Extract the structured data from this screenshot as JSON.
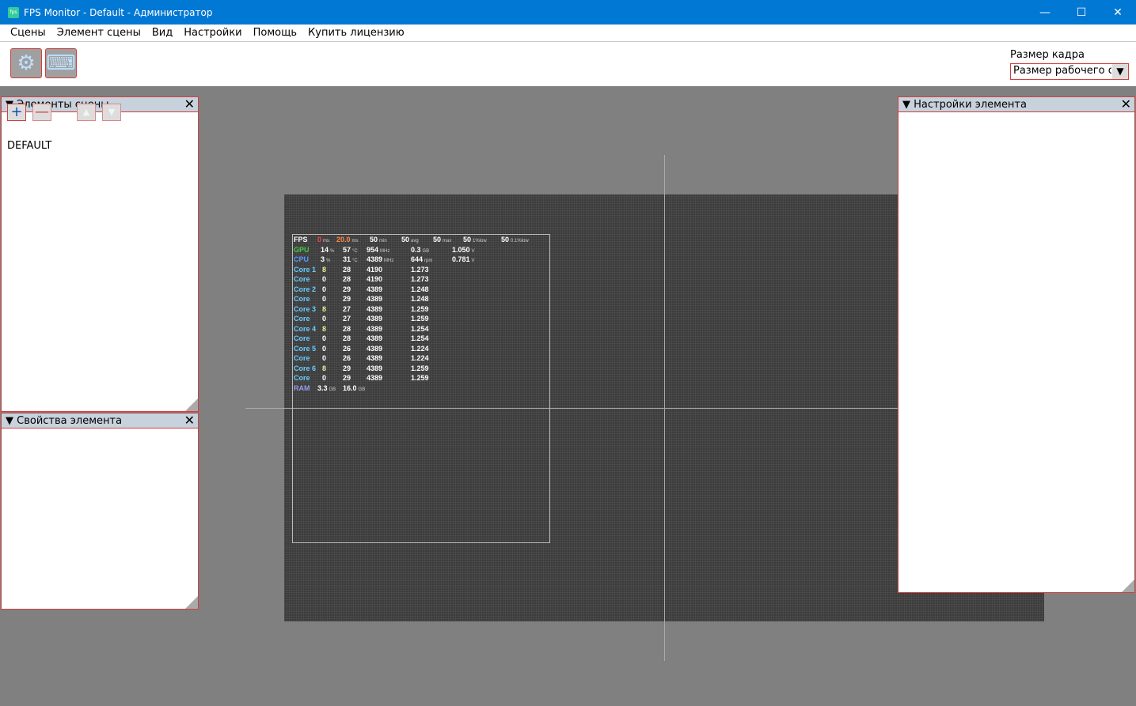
{
  "window": {
    "title": "FPS Monitor - Default - Администратор",
    "app_icon": "fps",
    "controls": [
      "minimize",
      "maximize",
      "close"
    ]
  },
  "menu": [
    "Сцены",
    "Элемент сцены",
    "Вид",
    "Настройки",
    "Помощь",
    "Купить лицензию"
  ],
  "toolbar": {
    "buttons": [
      "gear-icon",
      "keyboard-icon"
    ],
    "frame_size_label": "Размер кадра",
    "frame_size_value": "Размер рабочего стола"
  },
  "scene_panel": {
    "title": "Элементы сцены",
    "items": [
      "DEFAULT"
    ]
  },
  "props_panel": {
    "title": "Свойства элемента"
  },
  "settings_panel": {
    "title": "Настройки элемента"
  },
  "colors": {
    "accent": "#0078d4",
    "border": "#d04040",
    "fps": "#ffffff",
    "gpu": "#44cc44",
    "cpu": "#5599ff",
    "core": "#66ccff",
    "ram": "#9999ee",
    "warn": "#ff4444"
  },
  "overlay": {
    "fps": {
      "label": "FPS",
      "values": [
        [
          "0",
          "ms"
        ],
        [
          "20.0",
          "ms"
        ],
        [
          "50",
          "min"
        ],
        [
          "50",
          "avg"
        ],
        [
          "50",
          "max"
        ],
        [
          "50",
          "1%low"
        ],
        [
          "50",
          "0.1%low"
        ]
      ]
    },
    "gpu": {
      "label": "GPU",
      "values": [
        [
          "14",
          "%"
        ],
        [
          "57",
          "°C"
        ],
        [
          "954",
          "MHz"
        ],
        [
          "0.3",
          "GB"
        ],
        [
          "1.050",
          "V"
        ]
      ]
    },
    "cpu": {
      "label": "CPU",
      "values": [
        [
          "3",
          "%"
        ],
        [
          "31",
          "°C"
        ],
        [
          "4389",
          "MHz"
        ],
        [
          "644",
          "rpm"
        ],
        [
          "0.781",
          "V"
        ]
      ]
    },
    "cores": [
      {
        "label": "Core 1",
        "load": "8",
        "temp": "28",
        "clock": "4190",
        "volt": "1.273"
      },
      {
        "label": "Core",
        "load": "0",
        "temp": "28",
        "clock": "4190",
        "volt": "1.273"
      },
      {
        "label": "Core 2",
        "load": "0",
        "temp": "29",
        "clock": "4389",
        "volt": "1.248"
      },
      {
        "label": "Core",
        "load": "0",
        "temp": "29",
        "clock": "4389",
        "volt": "1.248"
      },
      {
        "label": "Core 3",
        "load": "8",
        "temp": "27",
        "clock": "4389",
        "volt": "1.259"
      },
      {
        "label": "Core",
        "load": "0",
        "temp": "27",
        "clock": "4389",
        "volt": "1.259"
      },
      {
        "label": "Core 4",
        "load": "8",
        "temp": "28",
        "clock": "4389",
        "volt": "1.254"
      },
      {
        "label": "Core",
        "load": "0",
        "temp": "28",
        "clock": "4389",
        "volt": "1.254"
      },
      {
        "label": "Core 5",
        "load": "0",
        "temp": "26",
        "clock": "4389",
        "volt": "1.224"
      },
      {
        "label": "Core",
        "load": "0",
        "temp": "26",
        "clock": "4389",
        "volt": "1.224"
      },
      {
        "label": "Core 6",
        "load": "8",
        "temp": "29",
        "clock": "4389",
        "volt": "1.259"
      },
      {
        "label": "Core",
        "load": "0",
        "temp": "29",
        "clock": "4389",
        "volt": "1.259"
      }
    ],
    "ram": {
      "label": "RAM",
      "values": [
        [
          "3.3",
          "GB"
        ],
        [
          "16.0",
          "GB"
        ]
      ]
    }
  }
}
